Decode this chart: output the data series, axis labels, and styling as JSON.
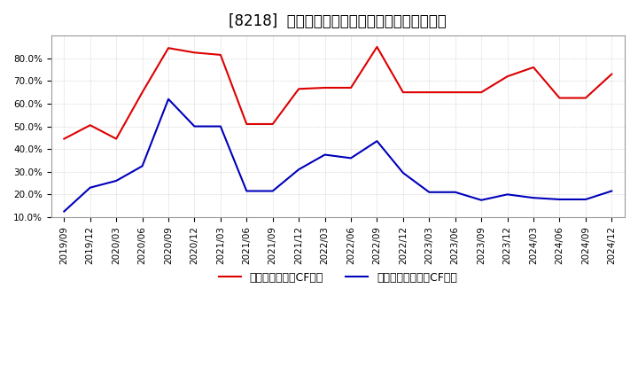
{
  "title": "[8218]  有利子負債キャッシュフロー比率の推移",
  "x_labels": [
    "2019/09",
    "2019/12",
    "2020/03",
    "2020/06",
    "2020/09",
    "2020/12",
    "2021/03",
    "2021/06",
    "2021/09",
    "2021/12",
    "2022/03",
    "2022/06",
    "2022/09",
    "2022/12",
    "2023/03",
    "2023/06",
    "2023/09",
    "2023/12",
    "2024/03",
    "2024/06",
    "2024/09",
    "2024/12"
  ],
  "red_values": [
    0.445,
    0.505,
    0.445,
    0.65,
    0.845,
    0.825,
    0.815,
    0.51,
    0.51,
    0.665,
    0.67,
    0.67,
    0.85,
    0.65,
    0.65,
    0.65,
    0.65,
    0.72,
    0.76,
    0.625,
    0.625,
    0.73
  ],
  "blue_values": [
    0.125,
    0.23,
    0.26,
    0.325,
    0.62,
    0.5,
    0.5,
    0.215,
    0.215,
    0.31,
    0.375,
    0.36,
    0.435,
    0.295,
    0.21,
    0.21,
    0.175,
    0.2,
    0.185,
    0.178,
    0.178,
    0.215
  ],
  "red_label": "有利子負債営業CF比率",
  "blue_label": "有利子負債フリーCF比率",
  "ylim_min": 0.1,
  "ylim_max": 0.9,
  "yticks": [
    0.1,
    0.2,
    0.3,
    0.4,
    0.5,
    0.6,
    0.7,
    0.8
  ],
  "red_color": "#dd0000",
  "blue_color": "#0000bb",
  "bg_color": "#ffffff",
  "plot_bg_color": "#ffffff",
  "grid_color": "#bbbbbb",
  "title_fontsize": 12,
  "legend_fontsize": 9,
  "tick_fontsize": 7.5
}
